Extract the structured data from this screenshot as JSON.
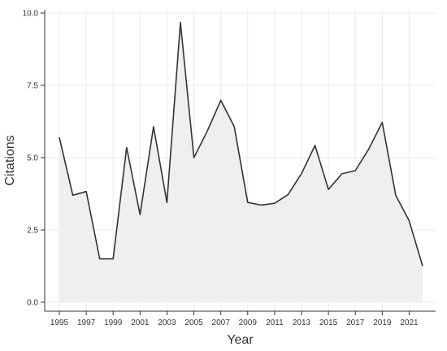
{
  "chart_data": {
    "type": "area",
    "xlabel": "Year",
    "ylabel": "Citations",
    "x": [
      1995,
      1996,
      1997,
      1998,
      1999,
      2000,
      2001,
      2002,
      2003,
      2004,
      2005,
      2006,
      2007,
      2008,
      2009,
      2010,
      2011,
      2012,
      2013,
      2014,
      2015,
      2016,
      2017,
      2018,
      2019,
      2020,
      2021,
      2022
    ],
    "y": [
      5.7,
      3.7,
      3.83,
      1.5,
      1.5,
      5.35,
      3.03,
      6.07,
      3.45,
      9.67,
      5.0,
      5.92,
      6.98,
      6.07,
      3.45,
      3.36,
      3.42,
      3.72,
      4.45,
      5.42,
      3.9,
      4.44,
      4.55,
      5.3,
      6.22,
      3.7,
      2.82,
      1.25
    ],
    "xlim": [
      1995,
      2022
    ],
    "ylim": [
      0,
      10
    ],
    "x_ticks": [
      "1995",
      "1997",
      "1999",
      "2001",
      "2003",
      "2005",
      "2007",
      "2009",
      "2011",
      "2013",
      "2015",
      "2017",
      "2019",
      "2021"
    ],
    "y_ticks": [
      "0.0",
      "2.5",
      "5.0",
      "7.5",
      "10.0"
    ],
    "y_tick_values": [
      0,
      2.5,
      5,
      7.5,
      10
    ],
    "grid": true,
    "colors": {
      "line": "#333333",
      "fill": "#efefef",
      "grid": "#e9e9e9",
      "axis": "#333333"
    }
  }
}
